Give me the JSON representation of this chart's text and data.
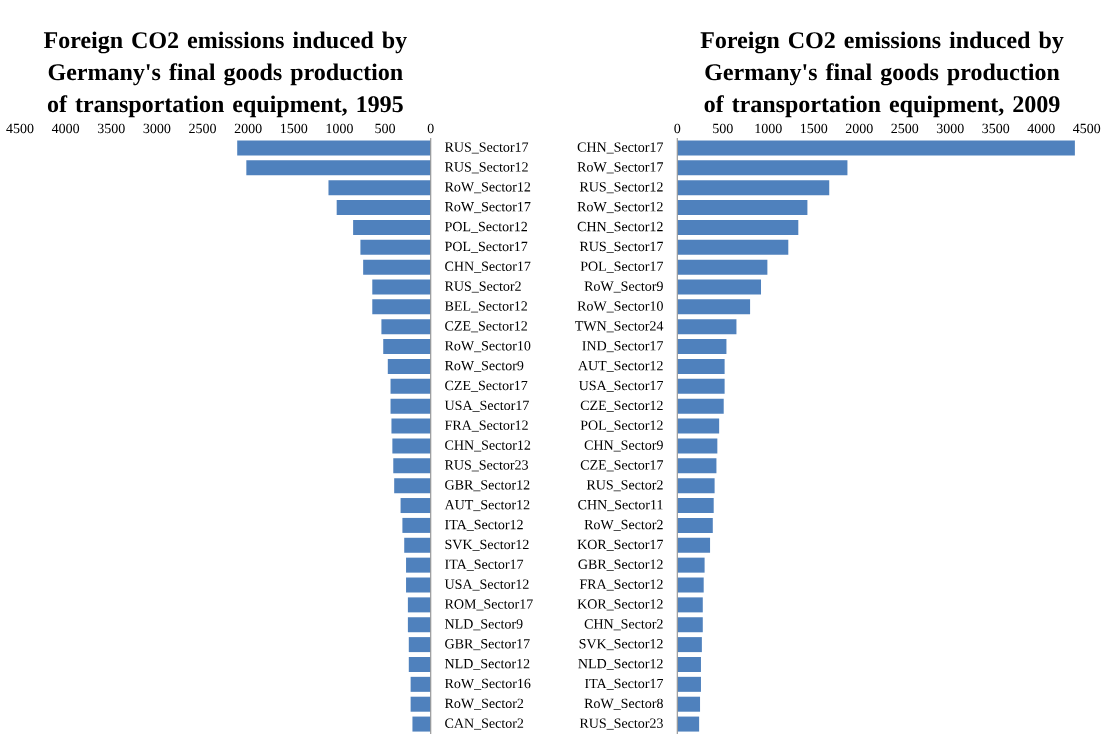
{
  "chart_data": [
    {
      "type": "bar",
      "orientation": "horizontal",
      "title": "Foreign CO2 emissions induced by Germany's final goods production of transportation equipment, 1995",
      "categories": [
        "RUS_Sector17",
        "RUS_Sector12",
        "RoW_Sector12",
        "RoW_Sector17",
        "POL_Sector12",
        "POL_Sector17",
        "CHN_Sector17",
        "RUS_Sector2",
        "BEL_Sector12",
        "CZE_Sector12",
        "RoW_Sector10",
        "RoW_Sector9",
        "CZE_Sector17",
        "USA_Sector17",
        "FRA_Sector12",
        "CHN_Sector12",
        "RUS_Sector23",
        "GBR_Sector12",
        "AUT_Sector12",
        "ITA_Sector12",
        "SVK_Sector12",
        "ITA_Sector17",
        "USA_Sector12",
        "ROM_Sector17",
        "NLD_Sector9",
        "GBR_Sector17",
        "NLD_Sector12",
        "RoW_Sector16",
        "RoW_Sector2",
        "CAN_Sector2"
      ],
      "values": [
        2120,
        2020,
        1120,
        1030,
        850,
        770,
        740,
        640,
        640,
        540,
        520,
        470,
        440,
        440,
        430,
        420,
        410,
        400,
        330,
        310,
        290,
        270,
        270,
        250,
        250,
        240,
        240,
        220,
        220,
        200
      ],
      "color": "#4f81bd",
      "xlim": [
        4500,
        0
      ],
      "xticks": [
        0,
        500,
        1000,
        1500,
        2000,
        2500,
        3000,
        3500,
        4000,
        4500
      ]
    },
    {
      "type": "bar",
      "orientation": "horizontal",
      "title": "Foreign CO2 emissions induced by Germany's final goods production of transportation equipment, 2009",
      "categories": [
        "CHN_Sector17",
        "RoW_Sector17",
        "RUS_Sector12",
        "RoW_Sector12",
        "CHN_Sector12",
        "RUS_Sector17",
        "POL_Sector17",
        "RoW_Sector9",
        "RoW_Sector10",
        "TWN_Sector24",
        "IND_Sector17",
        "AUT_Sector12",
        "USA_Sector17",
        "CZE_Sector12",
        "POL_Sector12",
        "CHN_Sector9",
        "CZE_Sector17",
        "RUS_Sector2",
        "CHN_Sector11",
        "RoW_Sector2",
        "KOR_Sector17",
        "GBR_Sector12",
        "FRA_Sector12",
        "KOR_Sector12",
        "CHN_Sector2",
        "SVK_Sector12",
        "NLD_Sector12",
        "ITA_Sector17",
        "RoW_Sector8",
        "RUS_Sector23"
      ],
      "values": [
        4370,
        1870,
        1670,
        1430,
        1330,
        1220,
        990,
        920,
        800,
        650,
        540,
        520,
        520,
        510,
        460,
        440,
        430,
        410,
        400,
        390,
        360,
        300,
        290,
        280,
        280,
        270,
        260,
        260,
        250,
        240
      ],
      "color": "#4f81bd",
      "xlim": [
        0,
        4500
      ],
      "xticks": [
        0,
        500,
        1000,
        1500,
        2000,
        2500,
        3000,
        3500,
        4000,
        4500
      ]
    }
  ]
}
